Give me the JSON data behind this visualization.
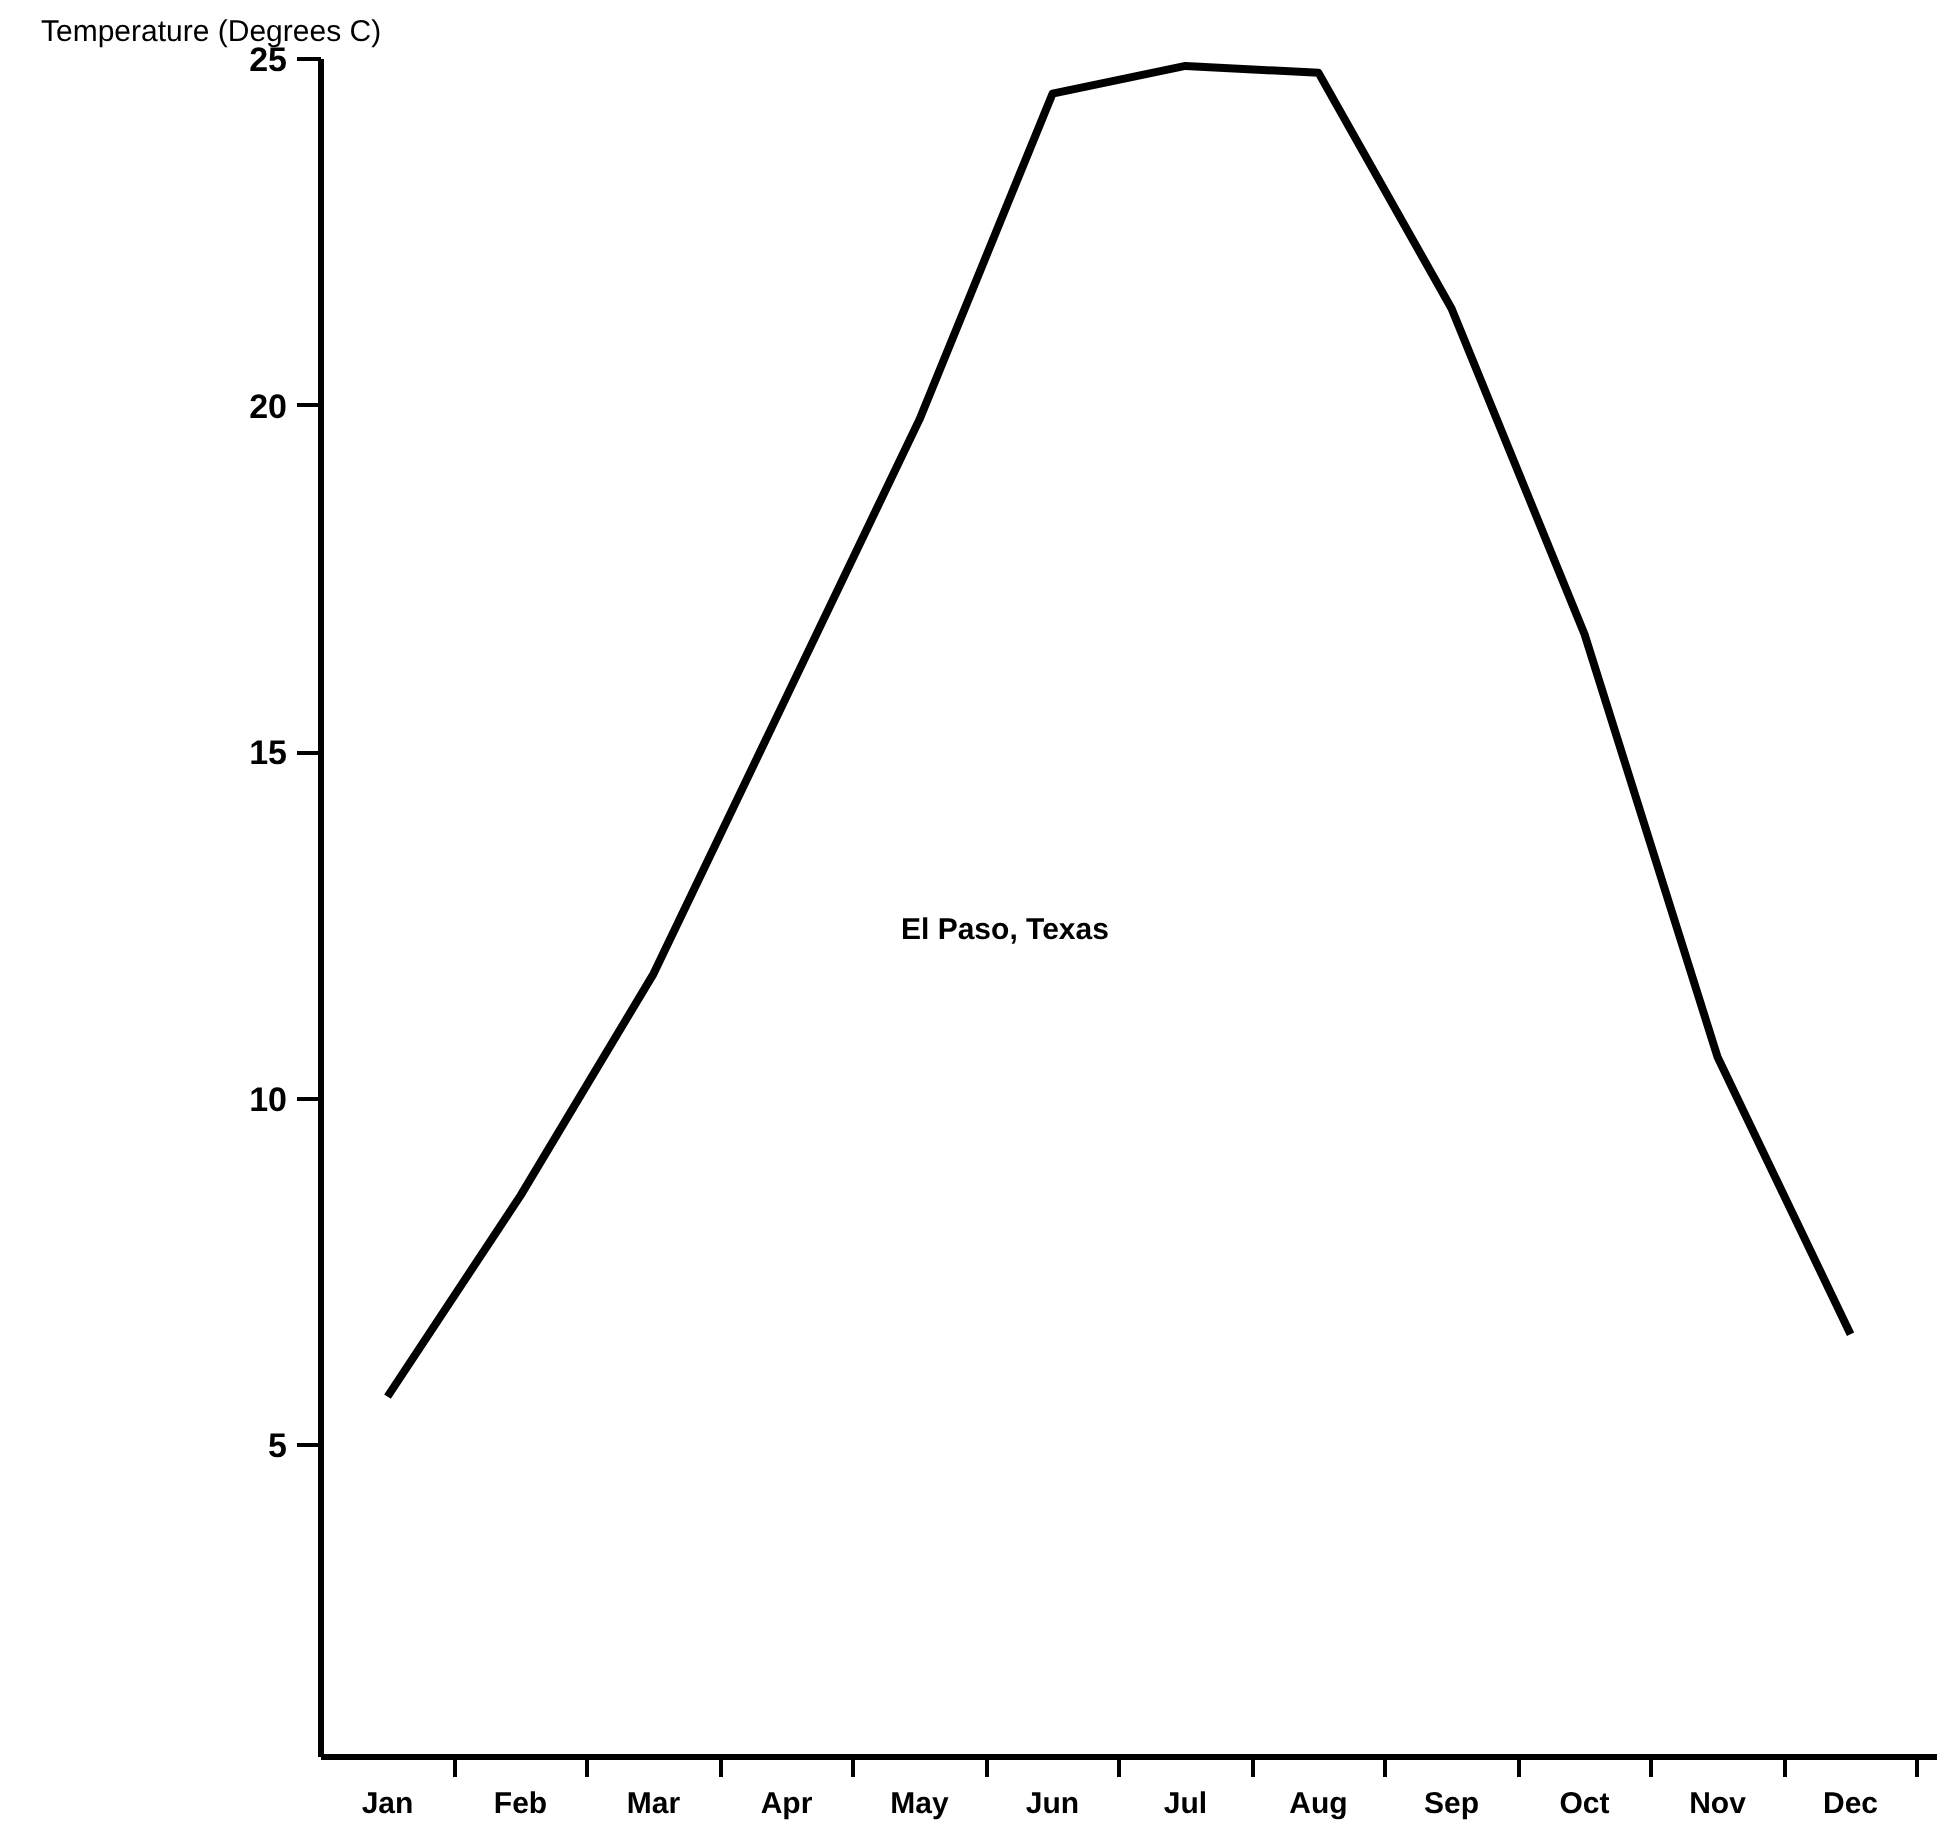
{
  "chart_data": {
    "type": "line",
    "ylabel": "Temperature (Degrees C)",
    "categories": [
      "Jan",
      "Feb",
      "Mar",
      "Apr",
      "May",
      "Jun",
      "Jul",
      "Aug",
      "Sep",
      "Oct",
      "Nov",
      "Dec"
    ],
    "series": [
      {
        "color": "#000000",
        "values": [
          5.7,
          8.6,
          11.8,
          15.8,
          19.8,
          24.5,
          24.9,
          24.8,
          21.4,
          16.7,
          10.6,
          6.6
        ]
      }
    ],
    "ylim": [
      0.5,
      25
    ],
    "yticks": [
      5,
      10,
      15,
      20,
      25
    ],
    "annotations": [
      "El Paso, Texas"
    ],
    "grid": false,
    "marker": "none",
    "line_style": "solid"
  }
}
